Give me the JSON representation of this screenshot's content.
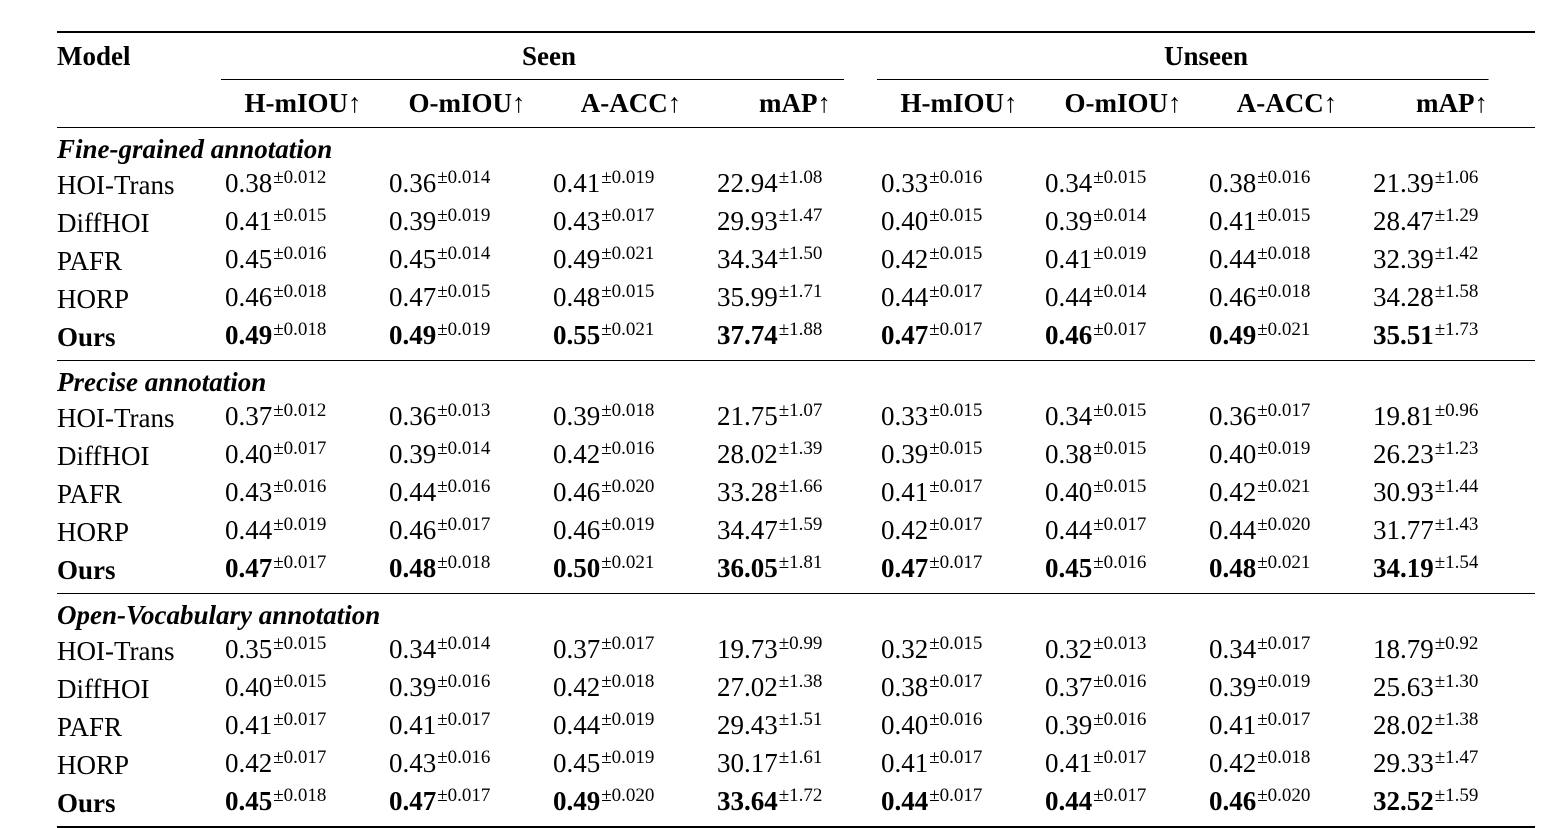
{
  "header": {
    "model_label": "Model",
    "groups": [
      "Seen",
      "Unseen"
    ],
    "metrics": [
      "H-mIOU↑",
      "O-mIOU↑",
      "A-ACC↑",
      "mAP↑",
      "H-mIOU↑",
      "O-mIOU↑",
      "A-ACC↑",
      "mAP↑"
    ]
  },
  "sections": [
    {
      "title": "Fine-grained annotation",
      "rows": [
        {
          "model": "HOI-Trans",
          "bold": false,
          "cells": [
            [
              "0.38",
              "±0.012"
            ],
            [
              "0.36",
              "±0.014"
            ],
            [
              "0.41",
              "±0.019"
            ],
            [
              "22.94",
              "±1.08"
            ],
            [
              "0.33",
              "±0.016"
            ],
            [
              "0.34",
              "±0.015"
            ],
            [
              "0.38",
              "±0.016"
            ],
            [
              "21.39",
              "±1.06"
            ]
          ]
        },
        {
          "model": "DiffHOI",
          "bold": false,
          "cells": [
            [
              "0.41",
              "±0.015"
            ],
            [
              "0.39",
              "±0.019"
            ],
            [
              "0.43",
              "±0.017"
            ],
            [
              "29.93",
              "±1.47"
            ],
            [
              "0.40",
              "±0.015"
            ],
            [
              "0.39",
              "±0.014"
            ],
            [
              "0.41",
              "±0.015"
            ],
            [
              "28.47",
              "±1.29"
            ]
          ]
        },
        {
          "model": "PAFR",
          "bold": false,
          "cells": [
            [
              "0.45",
              "±0.016"
            ],
            [
              "0.45",
              "±0.014"
            ],
            [
              "0.49",
              "±0.021"
            ],
            [
              "34.34",
              "±1.50"
            ],
            [
              "0.42",
              "±0.015"
            ],
            [
              "0.41",
              "±0.019"
            ],
            [
              "0.44",
              "±0.018"
            ],
            [
              "32.39",
              "±1.42"
            ]
          ]
        },
        {
          "model": "HORP",
          "bold": false,
          "cells": [
            [
              "0.46",
              "±0.018"
            ],
            [
              "0.47",
              "±0.015"
            ],
            [
              "0.48",
              "±0.015"
            ],
            [
              "35.99",
              "±1.71"
            ],
            [
              "0.44",
              "±0.017"
            ],
            [
              "0.44",
              "±0.014"
            ],
            [
              "0.46",
              "±0.018"
            ],
            [
              "34.28",
              "±1.58"
            ]
          ]
        },
        {
          "model": "Ours",
          "bold": true,
          "cells": [
            [
              "0.49",
              "±0.018"
            ],
            [
              "0.49",
              "±0.019"
            ],
            [
              "0.55",
              "±0.021"
            ],
            [
              "37.74",
              "±1.88"
            ],
            [
              "0.47",
              "±0.017"
            ],
            [
              "0.46",
              "±0.017"
            ],
            [
              "0.49",
              "±0.021"
            ],
            [
              "35.51",
              "±1.73"
            ]
          ]
        }
      ]
    },
    {
      "title": "Precise annotation",
      "rows": [
        {
          "model": "HOI-Trans",
          "bold": false,
          "cells": [
            [
              "0.37",
              "±0.012"
            ],
            [
              "0.36",
              "±0.013"
            ],
            [
              "0.39",
              "±0.018"
            ],
            [
              "21.75",
              "±1.07"
            ],
            [
              "0.33",
              "±0.015"
            ],
            [
              "0.34",
              "±0.015"
            ],
            [
              "0.36",
              "±0.017"
            ],
            [
              "19.81",
              "±0.96"
            ]
          ]
        },
        {
          "model": "DiffHOI",
          "bold": false,
          "cells": [
            [
              "0.40",
              "±0.017"
            ],
            [
              "0.39",
              "±0.014"
            ],
            [
              "0.42",
              "±0.016"
            ],
            [
              "28.02",
              "±1.39"
            ],
            [
              "0.39",
              "±0.015"
            ],
            [
              "0.38",
              "±0.015"
            ],
            [
              "0.40",
              "±0.019"
            ],
            [
              "26.23",
              "±1.23"
            ]
          ]
        },
        {
          "model": "PAFR",
          "bold": false,
          "cells": [
            [
              "0.43",
              "±0.016"
            ],
            [
              "0.44",
              "±0.016"
            ],
            [
              "0.46",
              "±0.020"
            ],
            [
              "33.28",
              "±1.66"
            ],
            [
              "0.41",
              "±0.017"
            ],
            [
              "0.40",
              "±0.015"
            ],
            [
              "0.42",
              "±0.021"
            ],
            [
              "30.93",
              "±1.44"
            ]
          ]
        },
        {
          "model": "HORP",
          "bold": false,
          "cells": [
            [
              "0.44",
              "±0.019"
            ],
            [
              "0.46",
              "±0.017"
            ],
            [
              "0.46",
              "±0.019"
            ],
            [
              "34.47",
              "±1.59"
            ],
            [
              "0.42",
              "±0.017"
            ],
            [
              "0.44",
              "±0.017"
            ],
            [
              "0.44",
              "±0.020"
            ],
            [
              "31.77",
              "±1.43"
            ]
          ]
        },
        {
          "model": "Ours",
          "bold": true,
          "cells": [
            [
              "0.47",
              "±0.017"
            ],
            [
              "0.48",
              "±0.018"
            ],
            [
              "0.50",
              "±0.021"
            ],
            [
              "36.05",
              "±1.81"
            ],
            [
              "0.47",
              "±0.017"
            ],
            [
              "0.45",
              "±0.016"
            ],
            [
              "0.48",
              "±0.021"
            ],
            [
              "34.19",
              "±1.54"
            ]
          ]
        }
      ]
    },
    {
      "title": "Open-Vocabulary annotation",
      "rows": [
        {
          "model": "HOI-Trans",
          "bold": false,
          "cells": [
            [
              "0.35",
              "±0.015"
            ],
            [
              "0.34",
              "±0.014"
            ],
            [
              "0.37",
              "±0.017"
            ],
            [
              "19.73",
              "±0.99"
            ],
            [
              "0.32",
              "±0.015"
            ],
            [
              "0.32",
              "±0.013"
            ],
            [
              "0.34",
              "±0.017"
            ],
            [
              "18.79",
              "±0.92"
            ]
          ]
        },
        {
          "model": "DiffHOI",
          "bold": false,
          "cells": [
            [
              "0.40",
              "±0.015"
            ],
            [
              "0.39",
              "±0.016"
            ],
            [
              "0.42",
              "±0.018"
            ],
            [
              "27.02",
              "±1.38"
            ],
            [
              "0.38",
              "±0.017"
            ],
            [
              "0.37",
              "±0.016"
            ],
            [
              "0.39",
              "±0.019"
            ],
            [
              "25.63",
              "±1.30"
            ]
          ]
        },
        {
          "model": "PAFR",
          "bold": false,
          "cells": [
            [
              "0.41",
              "±0.017"
            ],
            [
              "0.41",
              "±0.017"
            ],
            [
              "0.44",
              "±0.019"
            ],
            [
              "29.43",
              "±1.51"
            ],
            [
              "0.40",
              "±0.016"
            ],
            [
              "0.39",
              "±0.016"
            ],
            [
              "0.41",
              "±0.017"
            ],
            [
              "28.02",
              "±1.38"
            ]
          ]
        },
        {
          "model": "HORP",
          "bold": false,
          "cells": [
            [
              "0.42",
              "±0.017"
            ],
            [
              "0.43",
              "±0.016"
            ],
            [
              "0.45",
              "±0.019"
            ],
            [
              "30.17",
              "±1.61"
            ],
            [
              "0.41",
              "±0.017"
            ],
            [
              "0.41",
              "±0.017"
            ],
            [
              "0.42",
              "±0.018"
            ],
            [
              "29.33",
              "±1.47"
            ]
          ]
        },
        {
          "model": "Ours",
          "bold": true,
          "cells": [
            [
              "0.45",
              "±0.018"
            ],
            [
              "0.47",
              "±0.017"
            ],
            [
              "0.49",
              "±0.020"
            ],
            [
              "33.64",
              "±1.72"
            ],
            [
              "0.44",
              "±0.017"
            ],
            [
              "0.44",
              "±0.017"
            ],
            [
              "0.46",
              "±0.020"
            ],
            [
              "32.52",
              "±1.59"
            ]
          ]
        }
      ]
    }
  ]
}
